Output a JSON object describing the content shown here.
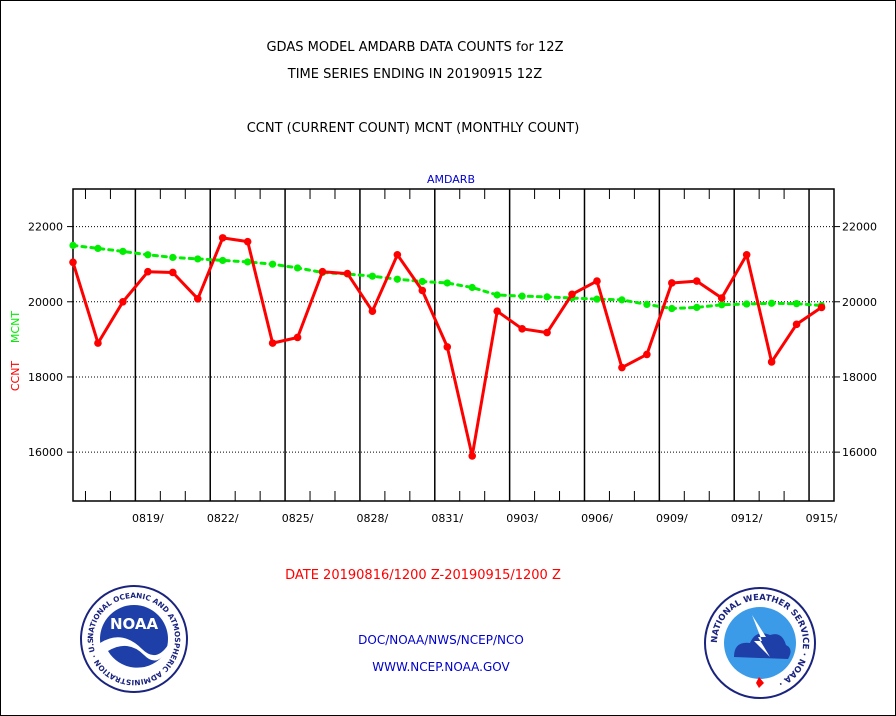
{
  "header": {
    "title_line1": "GDAS MODEL AMDARB DATA COUNTS for 12Z",
    "title_line2": "TIME SERIES ENDING IN 20190915 12Z",
    "subtitle": "CCNT (CURRENT COUNT) MCNT (MONTHLY COUNT)"
  },
  "footer": {
    "date_range": "DATE 20190816/1200 Z-20190915/1200 Z",
    "credit": "DOC/NOAA/NWS/NCEP/NCO",
    "url": "WWW.NCEP.NOAA.GOV"
  },
  "logos": {
    "noaa_text": "NOAA",
    "noaa_ring_text": "NATIONAL OCEANIC AND ATMOSPHERIC ADMINISTRATION · U.S. DEPARTMENT OF COMMERCE ·",
    "nws_ring_text": "NATIONAL WEATHER SERVICE · NOAA ·"
  },
  "colors": {
    "ccnt": "#ff0000",
    "mcnt": "#00ee00",
    "label_blue": "#0000cc",
    "axis": "#000000"
  },
  "chart_data": {
    "type": "line",
    "title": "AMDARB",
    "ylabel_ccnt": "CCNT",
    "ylabel_mcnt": "MCNT",
    "xlim": [
      0,
      30.5
    ],
    "ylim": [
      14700,
      23000
    ],
    "yticks": [
      16000,
      18000,
      20000,
      22000
    ],
    "ytick_labels": [
      "16000",
      "18000",
      "20000",
      "22000"
    ],
    "x_major_ticks": [
      2.5,
      5.5,
      8.5,
      11.5,
      14.5,
      17.5,
      20.5,
      23.5,
      26.5,
      29.5
    ],
    "x_minor_ticks": [
      0.5,
      1.5,
      3.5,
      4.5,
      6.5,
      7.5,
      9.5,
      10.5,
      12.5,
      13.5,
      15.5,
      16.5,
      18.5,
      19.5,
      21.5,
      22.5,
      24.5,
      25.5,
      27.5,
      28.5
    ],
    "x_tick_labels": [
      {
        "x": 3,
        "label": "0819/"
      },
      {
        "x": 6,
        "label": "0822/"
      },
      {
        "x": 9,
        "label": "0825/"
      },
      {
        "x": 12,
        "label": "0828/"
      },
      {
        "x": 15,
        "label": "0831/"
      },
      {
        "x": 18,
        "label": "0903/"
      },
      {
        "x": 21,
        "label": "0906/"
      },
      {
        "x": 24,
        "label": "0909/"
      },
      {
        "x": 27,
        "label": "0912/"
      },
      {
        "x": 30,
        "label": "0915/"
      }
    ],
    "grid": true,
    "series": [
      {
        "name": "CCNT",
        "x": [
          0,
          1,
          2,
          3,
          4,
          5,
          6,
          7,
          8,
          9,
          10,
          11,
          12,
          13,
          14,
          15,
          16,
          17,
          18,
          19,
          20,
          21,
          22,
          23,
          24,
          25,
          26,
          27,
          28,
          29,
          30
        ],
        "values": [
          21050,
          18900,
          20000,
          20800,
          20780,
          20080,
          21700,
          21600,
          18900,
          19050,
          20800,
          20750,
          19750,
          21250,
          20300,
          18800,
          15900,
          19750,
          19280,
          19180,
          20200,
          20550,
          18250,
          18600,
          20500,
          20550,
          20100,
          21250,
          18400,
          19400,
          19850
        ]
      },
      {
        "name": "MCNT",
        "x": [
          0,
          1,
          2,
          3,
          4,
          5,
          6,
          7,
          8,
          9,
          10,
          11,
          12,
          13,
          14,
          15,
          16,
          17,
          18,
          19,
          20,
          21,
          22,
          23,
          24,
          25,
          26,
          27,
          28,
          29,
          30
        ],
        "values": [
          21500,
          21420,
          21340,
          21250,
          21180,
          21140,
          21100,
          21060,
          21000,
          20900,
          20780,
          20740,
          20680,
          20600,
          20540,
          20500,
          20380,
          20180,
          20150,
          20130,
          20100,
          20070,
          20050,
          19930,
          19820,
          19850,
          19920,
          19940,
          19960,
          19950,
          19900
        ]
      }
    ]
  }
}
